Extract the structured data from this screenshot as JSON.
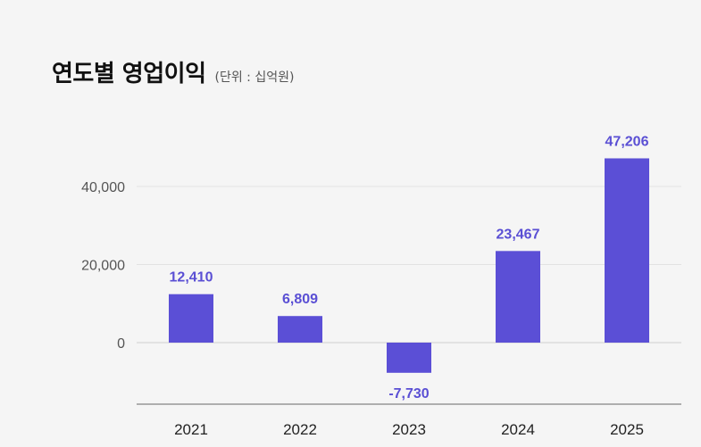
{
  "chart_data": {
    "type": "bar",
    "title": "연도별 영업이익",
    "subtitle": "(단위 : 십억원)",
    "categories": [
      "2021",
      "2022",
      "2023",
      "2024",
      "2025"
    ],
    "values": [
      12410,
      6809,
      -7730,
      23467,
      47206
    ],
    "value_labels": [
      "12,410",
      "6,809",
      "-7,730",
      "23,467",
      "47,206"
    ],
    "y_ticks": [
      0,
      20000,
      40000
    ],
    "y_tick_labels": [
      "0",
      "20,000",
      "40,000"
    ],
    "ylim": [
      -10000,
      49000
    ],
    "grid": true,
    "bar_color": "#5b4fd6"
  }
}
